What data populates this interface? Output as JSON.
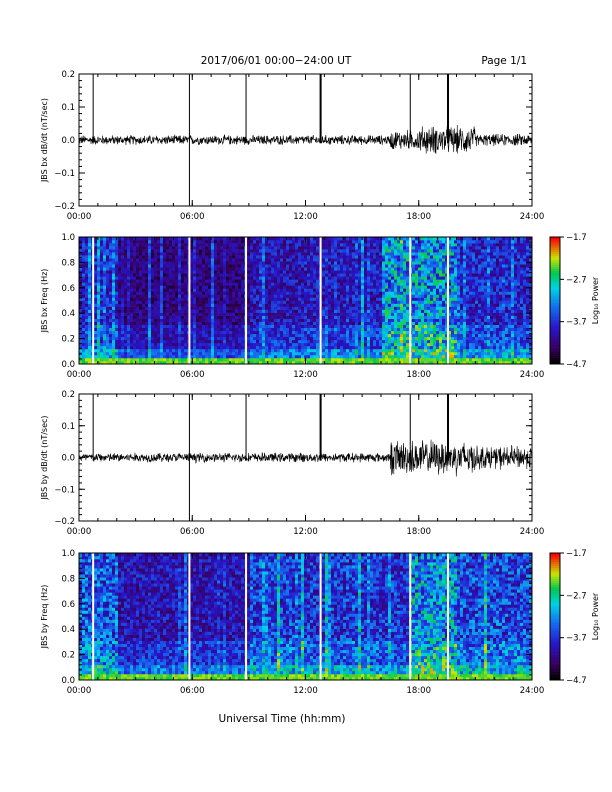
{
  "header": {
    "title": "2017/06/01   00:00−24:00 UT",
    "page_label": "Page 1/1"
  },
  "chart_data": [
    {
      "type": "line",
      "panel_id": "bx-line",
      "ylabel": "JBS bx dB/dt (nT/sec)",
      "xlim": [
        0,
        24
      ],
      "ylim": [
        -0.2,
        0.2
      ],
      "xticks": [
        "00:00",
        "06:00",
        "12:00",
        "18:00",
        "24:00"
      ],
      "yticks": [
        "−0.2",
        "−0.1",
        "0.0",
        "0.1",
        "0.2"
      ],
      "series": [
        {
          "spikes": [
            {
              "x": 0.75,
              "y_min": -0.01,
              "y_max": 0.2
            },
            {
              "x": 5.85,
              "y_min": -0.2,
              "y_max": 0.2
            },
            {
              "x": 8.85,
              "y_min": -0.01,
              "y_max": 0.2
            },
            {
              "x": 12.8,
              "y_min": -0.01,
              "y_max": 0.2
            },
            {
              "x": 17.55,
              "y_min": -0.01,
              "y_max": 0.2
            },
            {
              "x": 19.55,
              "y_min": -0.01,
              "y_max": 0.2
            }
          ],
          "noise": [
            {
              "x_start": 0,
              "x_end": 16.5,
              "amplitude": 0.012
            },
            {
              "x_start": 16.5,
              "x_end": 18,
              "amplitude": 0.025
            },
            {
              "x_start": 18,
              "x_end": 21,
              "amplitude": 0.035
            },
            {
              "x_start": 21,
              "x_end": 24,
              "amplitude": 0.015
            }
          ]
        }
      ]
    },
    {
      "type": "heatmap",
      "panel_id": "bx-spec",
      "ylabel": "JBS bx Freq (Hz)",
      "xlim": [
        0,
        24
      ],
      "ylim": [
        0,
        1.0
      ],
      "xticks": [
        "00:00",
        "06:00",
        "12:00",
        "18:00",
        "24:00"
      ],
      "yticks": [
        "0.0",
        "0.2",
        "0.4",
        "0.6",
        "0.8",
        "1.0"
      ],
      "colorbar": {
        "min": -4.7,
        "max": -1.7,
        "ticks": [
          "−1.7",
          "−2.7",
          "−3.7",
          "−4.7"
        ],
        "label": "Log₁₀ Power"
      },
      "gaps": [
        0.75,
        5.85,
        8.85,
        12.8,
        17.55,
        19.55
      ],
      "activity": [
        {
          "x_start": 0,
          "x_end": 2,
          "level": 0.35
        },
        {
          "x_start": 2,
          "x_end": 9,
          "level": 0.22
        },
        {
          "x_start": 9,
          "x_end": 12,
          "level": 0.3
        },
        {
          "x_start": 12,
          "x_end": 16,
          "level": 0.32
        },
        {
          "x_start": 16,
          "x_end": 20,
          "level": 0.55
        },
        {
          "x_start": 20,
          "x_end": 24,
          "level": 0.35
        }
      ]
    },
    {
      "type": "line",
      "panel_id": "by-line",
      "ylabel": "JBS by dB/dt (nT/sec)",
      "xlim": [
        0,
        24
      ],
      "ylim": [
        -0.2,
        0.2
      ],
      "xticks": [
        "00:00",
        "06:00",
        "12:00",
        "18:00",
        "24:00"
      ],
      "yticks": [
        "−0.2",
        "−0.1",
        "0.0",
        "0.1",
        "0.2"
      ],
      "series": [
        {
          "spikes": [
            {
              "x": 0.75,
              "y_min": -0.01,
              "y_max": 0.2
            },
            {
              "x": 5.85,
              "y_min": -0.2,
              "y_max": 0.2
            },
            {
              "x": 8.85,
              "y_min": -0.01,
              "y_max": 0.2
            },
            {
              "x": 12.8,
              "y_min": -0.01,
              "y_max": 0.2
            },
            {
              "x": 17.55,
              "y_min": -0.01,
              "y_max": 0.2
            },
            {
              "x": 19.55,
              "y_min": -0.01,
              "y_max": 0.2
            }
          ],
          "noise": [
            {
              "x_start": 0,
              "x_end": 16.5,
              "amplitude": 0.012
            },
            {
              "x_start": 16.5,
              "x_end": 21,
              "amplitude": 0.045
            },
            {
              "x_start": 21,
              "x_end": 24,
              "amplitude": 0.03
            }
          ]
        }
      ]
    },
    {
      "type": "heatmap",
      "panel_id": "by-spec",
      "ylabel": "JBS by Freq (Hz)",
      "xlim": [
        0,
        24
      ],
      "ylim": [
        0,
        1.0
      ],
      "xticks": [
        "00:00",
        "06:00",
        "12:00",
        "18:00",
        "24:00"
      ],
      "yticks": [
        "0.0",
        "0.2",
        "0.4",
        "0.6",
        "0.8",
        "1.0"
      ],
      "colorbar": {
        "min": -4.7,
        "max": -1.7,
        "ticks": [
          "−1.7",
          "−2.7",
          "−3.7",
          "−4.7"
        ],
        "label": "Log₁₀ Power"
      },
      "gaps": [
        0.75,
        5.85,
        8.85,
        12.8,
        17.55,
        19.55
      ],
      "activity": [
        {
          "x_start": 0,
          "x_end": 2,
          "level": 0.45
        },
        {
          "x_start": 2,
          "x_end": 9,
          "level": 0.3
        },
        {
          "x_start": 9,
          "x_end": 12,
          "level": 0.4
        },
        {
          "x_start": 12,
          "x_end": 17.5,
          "level": 0.38
        },
        {
          "x_start": 17.5,
          "x_end": 20,
          "level": 0.55
        },
        {
          "x_start": 20,
          "x_end": 24,
          "level": 0.42
        }
      ]
    }
  ],
  "xaxis": {
    "label": "Universal Time (hh:mm)"
  }
}
